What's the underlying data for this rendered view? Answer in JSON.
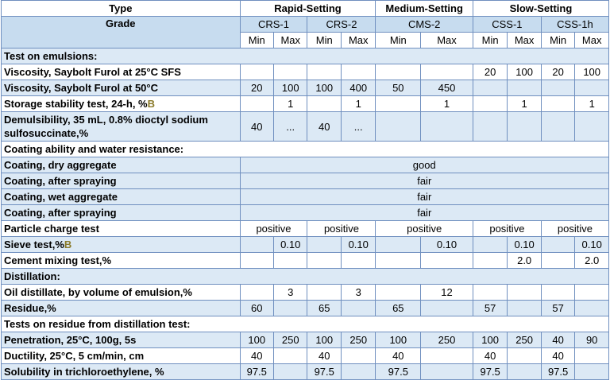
{
  "header": {
    "type_label": "Type",
    "grade_label": "Grade",
    "groups": [
      "Rapid-Setting",
      "Medium-Setting",
      "Slow-Setting"
    ],
    "grades": [
      "CRS-1",
      "CRS-2",
      "CMS-2",
      "CSS-1",
      "CSS-1h"
    ],
    "minmax": [
      "Min",
      "Max",
      "Min",
      "Max",
      "Min",
      "Max",
      "Min",
      "Max",
      "Min",
      "Max"
    ]
  },
  "sections": {
    "emulsions": "Test on emulsions:",
    "coating": "Coating ability and water resistance:",
    "distillation": "Distillation:",
    "residue_tests": "Tests on residue from distillation test:"
  },
  "rows": {
    "visc25": {
      "label": "Viscosity, Saybolt Furol at 25°C SFS",
      "cells": [
        "",
        "",
        "",
        "",
        "",
        "",
        "20",
        "100",
        "20",
        "100"
      ]
    },
    "visc50": {
      "label": "Viscosity, Saybolt Furol at 50°C",
      "cells": [
        "20",
        "100",
        "100",
        "400",
        "50",
        "450",
        "",
        "",
        "",
        ""
      ]
    },
    "storage": {
      "label": "Storage stability test, 24-h, %",
      "mark": "B",
      "cells": [
        "",
        "1",
        "",
        "1",
        "",
        "1",
        "",
        "1",
        "",
        "1"
      ]
    },
    "demuls": {
      "label": "Demulsibility, 35 mL, 0.8% dioctyl sodium sulfosuccinate,%",
      "cells": [
        "40",
        "...",
        "40",
        "...",
        "",
        "",
        "",
        "",
        "",
        ""
      ]
    },
    "coat_dry": {
      "label": "Coating, dry aggregate",
      "value": "good"
    },
    "coat_spray1": {
      "label": "Coating, after spraying",
      "value": "fair"
    },
    "coat_wet": {
      "label": "Coating, wet aggregate",
      "value": "fair"
    },
    "coat_spray2": {
      "label": "Coating, after spraying",
      "value": "fair"
    },
    "charge": {
      "label": "Particle charge test",
      "values": [
        "positive",
        "positive",
        "positive",
        "positive",
        "positive"
      ]
    },
    "sieve": {
      "label": "Sieve test,%",
      "mark": "B",
      "cells": [
        "",
        "0.10",
        "",
        "0.10",
        "",
        "0.10",
        "",
        "0.10",
        "",
        "0.10"
      ]
    },
    "cement": {
      "label": "Cement mixing test,%",
      "cells": [
        "",
        "",
        "",
        "",
        "",
        "",
        "",
        "2.0",
        "",
        "2.0"
      ]
    },
    "oil": {
      "label": "Oil distillate, by volume of emulsion,%",
      "cells": [
        "",
        "3",
        "",
        "3",
        "",
        "12",
        "",
        "",
        "",
        ""
      ]
    },
    "residue": {
      "label": "Residue,%",
      "cells": [
        "60",
        "",
        "65",
        "",
        "65",
        "",
        "57",
        "",
        "57",
        ""
      ]
    },
    "penetration": {
      "label": "Penetration, 25°C, 100g, 5s",
      "cells": [
        "100",
        "250",
        "100",
        "250",
        "100",
        "250",
        "100",
        "250",
        "40",
        "90"
      ]
    },
    "ductility": {
      "label": "Ductility, 25°C, 5 cm/min, cm",
      "cells": [
        "40",
        "",
        "40",
        "",
        "40",
        "",
        "40",
        "",
        "40",
        ""
      ]
    },
    "solubility": {
      "label": "Solubility in trichloroethylene, %",
      "cells": [
        "97.5",
        "",
        "97.5",
        "",
        "97.5",
        "",
        "97.5",
        "",
        "97.5",
        ""
      ]
    }
  }
}
